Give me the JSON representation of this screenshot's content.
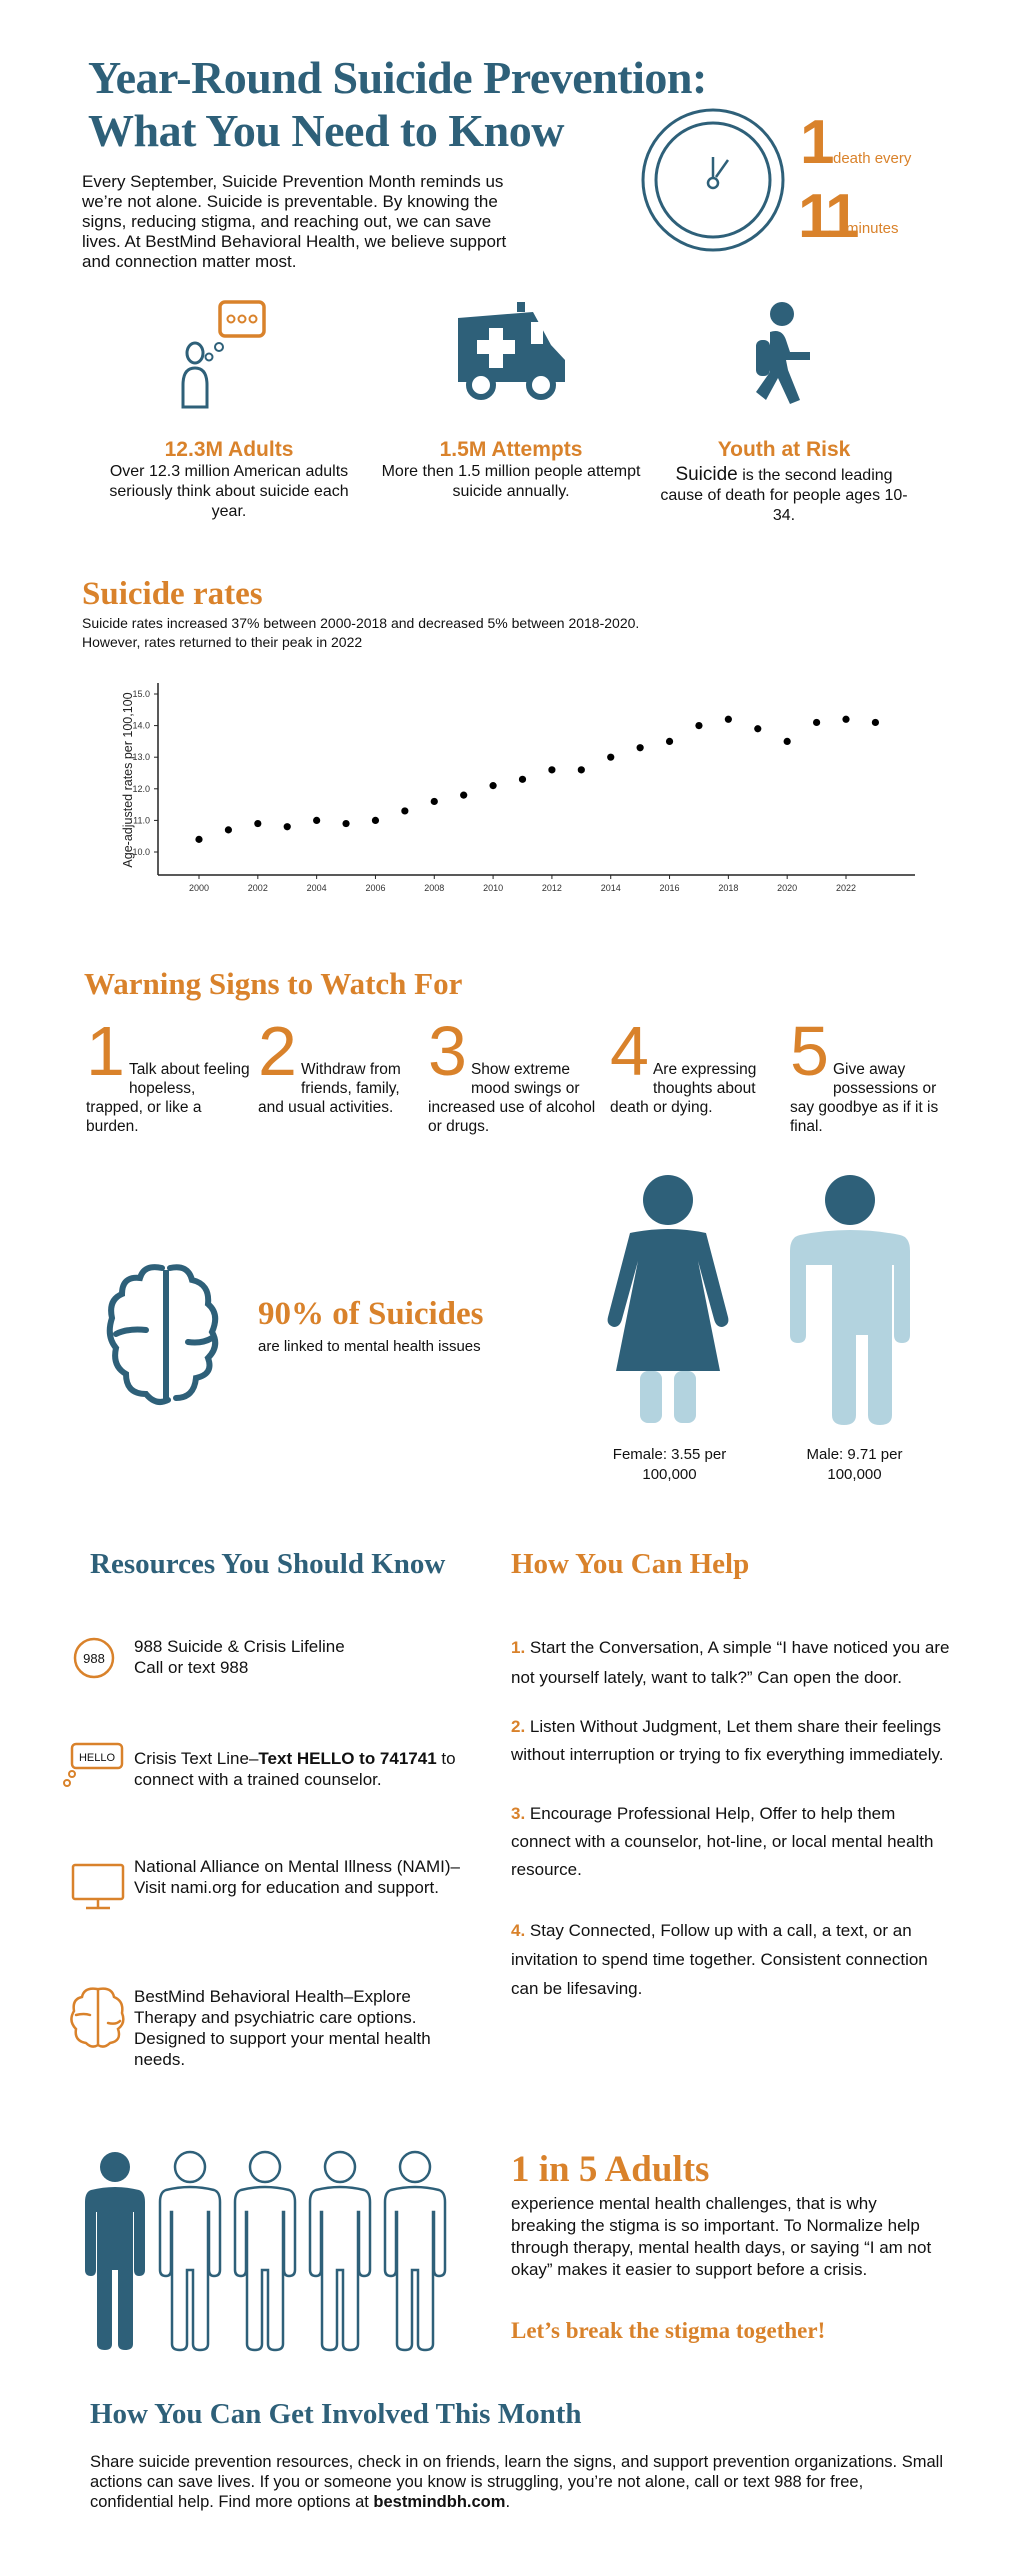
{
  "header": {
    "title_line1": "Year-Round Suicide Prevention:",
    "title_line2": "What You Need to Know",
    "intro": "Every September, Suicide Prevention Month reminds us we’re not alone. Suicide is preventable. By knowing the signs, reducing stigma, and reaching out, we can save lives. At BestMind Behavioral Health, we believe support and connection matter most."
  },
  "clock_stat": {
    "icon": "clock-icon",
    "number1": "1",
    "label1": "death every",
    "number2": "11",
    "label2": "minutes"
  },
  "stats": [
    {
      "icon": "person-thinking-icon",
      "title": "12.3M Adults",
      "text": "Over 12.3 million American adults seriously think about suicide each year."
    },
    {
      "icon": "ambulance-icon",
      "title": "1.5M Attempts",
      "text": "More then 1.5 million people attempt suicide annually."
    },
    {
      "icon": "walking-youth-icon",
      "title": "Youth at Risk",
      "text_strong": "Suicide",
      "text": " is the second leading cause of death for people ages 10-34."
    }
  ],
  "rates": {
    "heading": "Suicide rates",
    "line1": "Suicide rates increased 37% between 2000-2018 and decreased 5% between 2018-2020.",
    "line2": "However, rates returned to their peak in 2022"
  },
  "chart_data": {
    "type": "scatter",
    "ylabel": "Age-adjusted rates per 100,100",
    "xlabel": "",
    "x": [
      2000,
      2001,
      2002,
      2003,
      2004,
      2005,
      2006,
      2007,
      2008,
      2009,
      2010,
      2011,
      2012,
      2013,
      2014,
      2015,
      2016,
      2017,
      2018,
      2019,
      2020,
      2021,
      2022,
      2023
    ],
    "y": [
      10.4,
      10.7,
      10.9,
      10.8,
      11.0,
      10.9,
      11.0,
      11.3,
      11.6,
      11.8,
      12.1,
      12.3,
      12.6,
      12.6,
      13.0,
      13.3,
      13.5,
      14.0,
      14.2,
      13.9,
      13.5,
      14.1,
      14.2,
      14.1
    ],
    "xticks": [
      "2000",
      "2002",
      "2004",
      "2006",
      "2008",
      "2010",
      "2012",
      "2014",
      "2016",
      "2018",
      "2020",
      "2022"
    ],
    "yticks": [
      "10.0",
      "11.0",
      "12.0",
      "13.0",
      "14.0",
      "15.0"
    ],
    "ylim": [
      9.5,
      15.6
    ],
    "xlim": [
      1999.5,
      2024
    ],
    "grid": false,
    "point_color": "#000000"
  },
  "warning": {
    "heading": "Warning Signs to Watch For",
    "items": [
      {
        "num": "1",
        "text": "Talk about feeling hopeless, trapped, or like a burden."
      },
      {
        "num": "2",
        "text": "Withdraw from friends, family, and usual activities."
      },
      {
        "num": "3",
        "text": "Show extreme mood swings or increased use of alcohol or drugs."
      },
      {
        "num": "4",
        "text": "Are expressing thoughts about death or dying."
      },
      {
        "num": "5",
        "text": "Give away possessions or say goodbye as if it is final."
      }
    ]
  },
  "mental": {
    "icon": "brain-icon",
    "heading": "90% of Suicides",
    "sub": "are linked to mental health issues"
  },
  "gender": {
    "female": "Female: 3.55 per 100,000",
    "male": "Male: 9.71 per 100,000"
  },
  "resources": {
    "heading": "Resources You Should Know",
    "items": [
      {
        "icon": "988-badge-icon",
        "badge": "988",
        "line1": "988 Suicide & Crisis Lifeline",
        "line2": "Call or text 988"
      },
      {
        "icon": "hello-chat-icon",
        "badge": "HELLO",
        "pre": "Crisis Text Line–",
        "bold": "Text HELLO to 741741",
        "post": " to connect with a trained counselor."
      },
      {
        "icon": "monitor-icon",
        "text": "National Alliance on Mental Illness (NAMI)–Visit nami.org for education and support."
      },
      {
        "icon": "brain-icon",
        "text": "BestMind Behavioral Health–Explore Therapy and psychiatric care options. Designed to support your mental health needs."
      }
    ]
  },
  "help": {
    "heading": "How You Can Help",
    "items": [
      {
        "num": "1.",
        "text": " Start the Conversation, A simple “I have noticed you are not yourself lately, want to talk?” Can open the door."
      },
      {
        "num": "2.",
        "text": " Listen Without Judgment, Let them share their feelings without interruption or trying to fix everything immediately."
      },
      {
        "num": "3.",
        "text": " Encourage Professional Help, Offer to help them connect with a counselor, hot-line, or local mental health resource."
      },
      {
        "num": "4.",
        "text": " Stay Connected, Follow up with a call, a text, or an invitation to spend time together. Consistent connection can be lifesaving."
      }
    ]
  },
  "one_in_five": {
    "heading": "1 in 5 Adults",
    "text": "experience mental health challenges, that is why breaking the stigma is so important. To Normalize help through therapy, mental health days, or saying “I am not okay” makes it easier to support before a crisis.",
    "cta": "Let’s break the stigma together!",
    "filled_count": 1,
    "total_count": 5
  },
  "involved": {
    "heading": "How You Can Get Involved This Month",
    "text": "Share suicide prevention resources, check in on friends, learn the signs, and support prevention organizations. Small actions can save lives. If you or someone you know is struggling, you’re not alone, call or text 988 for free, confidential help. Find more options at ",
    "link": "bestmindbh.com",
    "end": "."
  },
  "colors": {
    "blue": "#2e6079",
    "orange": "#d9822b",
    "light_blue": "#b3d3df"
  }
}
